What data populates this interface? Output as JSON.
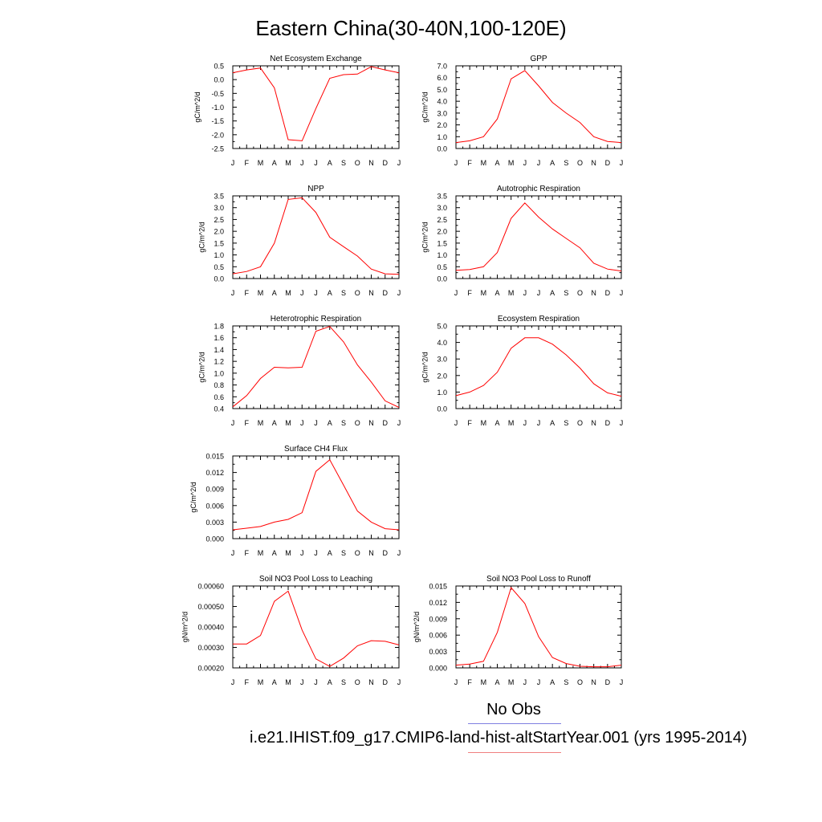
{
  "title": "Eastern China(30-40N,100-120E)",
  "colors": {
    "model_line": "#ff0000",
    "obs_legend_line": "#7f7fe0",
    "model_legend_line": "#f08080",
    "axis": "#000000"
  },
  "legend": {
    "obs_label": "No Obs",
    "case_label": "i.e21.IHIST.f09_g17.CMIP6-land-hist-altStartYear.001 (yrs 1995-2014)"
  },
  "chart_data": [
    {
      "type": "line",
      "title": "Net Ecosystem Exchange",
      "ylabel": "gC/m^2/d",
      "categories": [
        "J",
        "F",
        "M",
        "A",
        "M",
        "J",
        "J",
        "A",
        "S",
        "O",
        "N",
        "D",
        "J"
      ],
      "ylim": [
        -2.5,
        0.5
      ],
      "yticks": [
        "0.5",
        "0.0",
        "-0.5",
        "-1.0",
        "-1.5",
        "-2.0",
        "-2.5"
      ],
      "series": [
        {
          "values": [
            0.25,
            0.35,
            0.42,
            -0.3,
            -2.18,
            -2.22,
            -1.05,
            0.05,
            0.18,
            0.2,
            0.47,
            0.35,
            0.25
          ]
        }
      ]
    },
    {
      "type": "line",
      "title": "GPP",
      "ylabel": "gC/m^2/d",
      "categories": [
        "J",
        "F",
        "M",
        "A",
        "M",
        "J",
        "J",
        "A",
        "S",
        "O",
        "N",
        "D",
        "J"
      ],
      "ylim": [
        0.0,
        7.0
      ],
      "yticks": [
        "7.0",
        "6.0",
        "5.0",
        "4.0",
        "3.0",
        "2.0",
        "1.0",
        "0.0"
      ],
      "series": [
        {
          "values": [
            0.5,
            0.65,
            1.0,
            2.5,
            5.9,
            6.6,
            5.3,
            3.9,
            3.0,
            2.2,
            1.0,
            0.6,
            0.5
          ]
        }
      ]
    },
    {
      "type": "line",
      "title": "NPP",
      "ylabel": "gC/m^2/d",
      "categories": [
        "J",
        "F",
        "M",
        "A",
        "M",
        "J",
        "J",
        "A",
        "S",
        "O",
        "N",
        "D",
        "J"
      ],
      "ylim": [
        0.0,
        3.5
      ],
      "yticks": [
        "3.5",
        "3.0",
        "2.5",
        "2.0",
        "1.5",
        "1.0",
        "0.5",
        "0.0"
      ],
      "series": [
        {
          "values": [
            0.2,
            0.3,
            0.5,
            1.5,
            3.35,
            3.42,
            2.8,
            1.75,
            1.35,
            0.95,
            0.4,
            0.2,
            0.18
          ]
        }
      ]
    },
    {
      "type": "line",
      "title": "Autotrophic Respiration",
      "ylabel": "gC/m^2/d",
      "categories": [
        "J",
        "F",
        "M",
        "A",
        "M",
        "J",
        "J",
        "A",
        "S",
        "O",
        "N",
        "D",
        "J"
      ],
      "ylim": [
        0.0,
        3.5
      ],
      "yticks": [
        "3.5",
        "3.0",
        "2.5",
        "2.0",
        "1.5",
        "1.0",
        "0.5",
        "0.0"
      ],
      "series": [
        {
          "values": [
            0.35,
            0.38,
            0.5,
            1.1,
            2.55,
            3.2,
            2.6,
            2.1,
            1.7,
            1.3,
            0.65,
            0.4,
            0.32
          ]
        }
      ]
    },
    {
      "type": "line",
      "title": "Heterotrophic Respiration",
      "ylabel": "gC/m^2/d",
      "categories": [
        "J",
        "F",
        "M",
        "A",
        "M",
        "J",
        "J",
        "A",
        "S",
        "O",
        "N",
        "D",
        "J"
      ],
      "ylim": [
        0.4,
        1.8
      ],
      "yticks": [
        "1.8",
        "1.6",
        "1.4",
        "1.2",
        "1.0",
        "0.8",
        "0.6",
        "0.4"
      ],
      "series": [
        {
          "values": [
            0.43,
            0.62,
            0.91,
            1.1,
            1.09,
            1.1,
            1.71,
            1.79,
            1.53,
            1.14,
            0.85,
            0.53,
            0.42
          ]
        }
      ]
    },
    {
      "type": "line",
      "title": "Ecosystem Respiration",
      "ylabel": "gC/m^2/d",
      "categories": [
        "J",
        "F",
        "M",
        "A",
        "M",
        "J",
        "J",
        "A",
        "S",
        "O",
        "N",
        "D",
        "J"
      ],
      "ylim": [
        0.0,
        5.0
      ],
      "yticks": [
        "5.0",
        "4.0",
        "3.0",
        "2.0",
        "1.0",
        "0.0"
      ],
      "series": [
        {
          "values": [
            0.78,
            1.0,
            1.4,
            2.2,
            3.65,
            4.28,
            4.28,
            3.9,
            3.25,
            2.45,
            1.5,
            0.95,
            0.75
          ]
        }
      ]
    },
    {
      "type": "line",
      "title": "Surface CH4 Flux",
      "ylabel": "gC/m^2/d",
      "categories": [
        "J",
        "F",
        "M",
        "A",
        "M",
        "J",
        "J",
        "A",
        "S",
        "O",
        "N",
        "D",
        "J"
      ],
      "ylim": [
        0.0,
        0.015
      ],
      "yticks": [
        "0.015",
        "0.012",
        "0.009",
        "0.006",
        "0.003",
        "0.000"
      ],
      "series": [
        {
          "values": [
            0.0016,
            0.0019,
            0.0022,
            0.003,
            0.0035,
            0.0047,
            0.0122,
            0.0143,
            0.0097,
            0.005,
            0.003,
            0.0018,
            0.0016
          ]
        }
      ]
    },
    {
      "type": "line",
      "title": "Soil NO3 Pool Loss to Leaching",
      "ylabel": "gN/m^2/d",
      "categories": [
        "J",
        "F",
        "M",
        "A",
        "M",
        "J",
        "J",
        "A",
        "S",
        "O",
        "N",
        "D",
        "J"
      ],
      "ylim": [
        0.0002,
        0.0006
      ],
      "yticks": [
        "0.00060",
        "0.00050",
        "0.00040",
        "0.00030",
        "0.00020"
      ],
      "series": [
        {
          "values": [
            0.000317,
            0.000317,
            0.000358,
            0.000525,
            0.000575,
            0.000385,
            0.000244,
            0.000207,
            0.000248,
            0.000308,
            0.000333,
            0.00033,
            0.000312
          ]
        }
      ]
    },
    {
      "type": "line",
      "title": "Soil NO3 Pool Loss to Runoff",
      "ylabel": "gN/m^2/d",
      "categories": [
        "J",
        "F",
        "M",
        "A",
        "M",
        "J",
        "J",
        "A",
        "S",
        "O",
        "N",
        "D",
        "J"
      ],
      "ylim": [
        0.0,
        0.015
      ],
      "yticks": [
        "0.015",
        "0.012",
        "0.009",
        "0.006",
        "0.003",
        "0.000"
      ],
      "series": [
        {
          "values": [
            0.0005,
            0.0007,
            0.0012,
            0.0065,
            0.0147,
            0.0118,
            0.0057,
            0.0019,
            0.0008,
            0.0003,
            0.0002,
            0.0002,
            0.0005
          ]
        }
      ]
    }
  ]
}
